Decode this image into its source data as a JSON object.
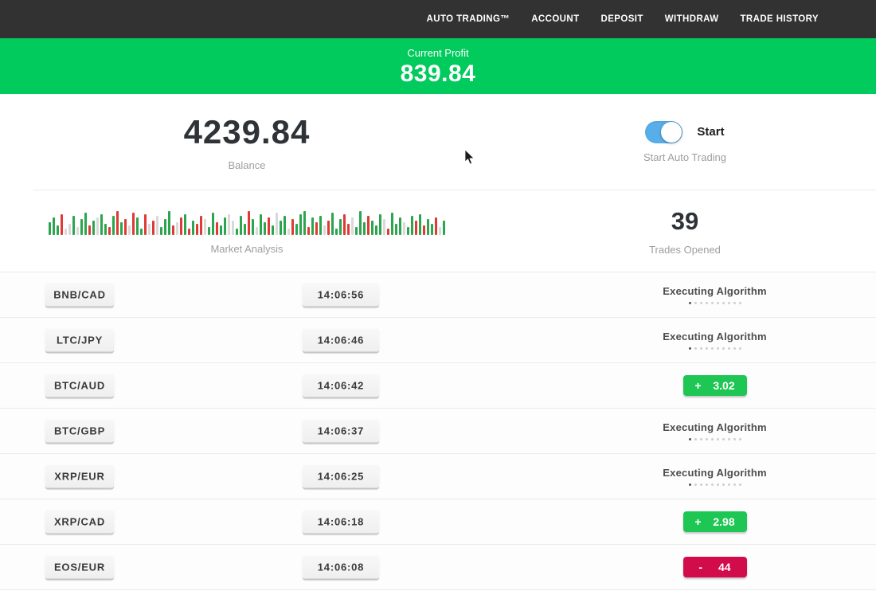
{
  "nav": {
    "items": [
      {
        "label": "AUTO TRADING™"
      },
      {
        "label": "ACCOUNT"
      },
      {
        "label": "DEPOSIT"
      },
      {
        "label": "WITHDRAW"
      },
      {
        "label": "TRADE HISTORY"
      }
    ]
  },
  "profit_banner": {
    "label": "Current Profit",
    "value": "839.84"
  },
  "stats": {
    "balance": {
      "value": "4239.84",
      "label": "Balance"
    },
    "auto_trading": {
      "toggle_on": true,
      "toggle_label": "Start",
      "label": "Start Auto Trading"
    },
    "market_analysis": {
      "label": "Market Analysis"
    },
    "trades_opened": {
      "value": "39",
      "label": "Trades Opened"
    }
  },
  "chart_data": {
    "type": "bar",
    "title": "Market Analysis",
    "note": "decorative green/red/gray volume-style sparkline, bottom-aligned bars",
    "bars": [
      [
        16,
        "g"
      ],
      [
        22,
        "g"
      ],
      [
        12,
        "g"
      ],
      [
        26,
        "r"
      ],
      [
        8,
        "l"
      ],
      [
        14,
        "l"
      ],
      [
        24,
        "g"
      ],
      [
        10,
        "l"
      ],
      [
        20,
        "g"
      ],
      [
        28,
        "g"
      ],
      [
        12,
        "r"
      ],
      [
        18,
        "g"
      ],
      [
        22,
        "l"
      ],
      [
        26,
        "g"
      ],
      [
        14,
        "g"
      ],
      [
        10,
        "r"
      ],
      [
        24,
        "g"
      ],
      [
        30,
        "r"
      ],
      [
        16,
        "g"
      ],
      [
        20,
        "r"
      ],
      [
        12,
        "l"
      ],
      [
        28,
        "r"
      ],
      [
        22,
        "g"
      ],
      [
        8,
        "g"
      ],
      [
        26,
        "r"
      ],
      [
        14,
        "l"
      ],
      [
        18,
        "r"
      ],
      [
        24,
        "l"
      ],
      [
        10,
        "g"
      ],
      [
        20,
        "g"
      ],
      [
        30,
        "g"
      ],
      [
        12,
        "r"
      ],
      [
        16,
        "l"
      ],
      [
        22,
        "r"
      ],
      [
        26,
        "g"
      ],
      [
        8,
        "r"
      ],
      [
        18,
        "g"
      ],
      [
        14,
        "r"
      ],
      [
        24,
        "r"
      ],
      [
        20,
        "l"
      ],
      [
        10,
        "g"
      ],
      [
        28,
        "g"
      ],
      [
        16,
        "r"
      ],
      [
        12,
        "g"
      ],
      [
        22,
        "g"
      ],
      [
        26,
        "l"
      ],
      [
        18,
        "l"
      ],
      [
        8,
        "g"
      ],
      [
        24,
        "g"
      ],
      [
        14,
        "g"
      ],
      [
        30,
        "r"
      ],
      [
        20,
        "g"
      ],
      [
        10,
        "l"
      ],
      [
        26,
        "g"
      ],
      [
        16,
        "g"
      ],
      [
        22,
        "r"
      ],
      [
        12,
        "g"
      ],
      [
        28,
        "l"
      ],
      [
        18,
        "g"
      ],
      [
        24,
        "g"
      ],
      [
        8,
        "l"
      ],
      [
        20,
        "r"
      ],
      [
        14,
        "g"
      ],
      [
        26,
        "g"
      ],
      [
        30,
        "g"
      ],
      [
        10,
        "r"
      ],
      [
        22,
        "g"
      ],
      [
        16,
        "r"
      ],
      [
        24,
        "g"
      ],
      [
        12,
        "l"
      ],
      [
        18,
        "r"
      ],
      [
        28,
        "g"
      ],
      [
        8,
        "g"
      ],
      [
        20,
        "g"
      ],
      [
        26,
        "r"
      ],
      [
        14,
        "r"
      ],
      [
        22,
        "l"
      ],
      [
        10,
        "g"
      ],
      [
        30,
        "g"
      ],
      [
        16,
        "g"
      ],
      [
        24,
        "r"
      ],
      [
        18,
        "g"
      ],
      [
        12,
        "g"
      ],
      [
        26,
        "g"
      ],
      [
        20,
        "l"
      ],
      [
        8,
        "r"
      ],
      [
        28,
        "g"
      ],
      [
        14,
        "g"
      ],
      [
        22,
        "g"
      ],
      [
        16,
        "l"
      ],
      [
        10,
        "g"
      ],
      [
        24,
        "g"
      ],
      [
        18,
        "r"
      ],
      [
        26,
        "g"
      ],
      [
        12,
        "r"
      ],
      [
        20,
        "g"
      ],
      [
        14,
        "g"
      ],
      [
        22,
        "r"
      ],
      [
        10,
        "l"
      ],
      [
        18,
        "g"
      ]
    ]
  },
  "executing_dots": {
    "total": 10,
    "active_index": 0
  },
  "trades": [
    {
      "pair": "BNB/CAD",
      "time": "14:06:56",
      "status": "executing",
      "status_label": "Executing Algorithm"
    },
    {
      "pair": "LTC/JPY",
      "time": "14:06:46",
      "status": "executing",
      "status_label": "Executing Algorithm"
    },
    {
      "pair": "BTC/AUD",
      "time": "14:06:42",
      "status": "profit",
      "sign": "+",
      "value": "3.02"
    },
    {
      "pair": "BTC/GBP",
      "time": "14:06:37",
      "status": "executing",
      "status_label": "Executing Algorithm"
    },
    {
      "pair": "XRP/EUR",
      "time": "14:06:25",
      "status": "executing",
      "status_label": "Executing Algorithm"
    },
    {
      "pair": "XRP/CAD",
      "time": "14:06:18",
      "status": "profit",
      "sign": "+",
      "value": "2.98"
    },
    {
      "pair": "EOS/EUR",
      "time": "14:06:08",
      "status": "loss",
      "sign": "-",
      "value": "44"
    }
  ],
  "colors": {
    "nav_bg": "#323232",
    "banner_green": "#00cb5c",
    "profit_badge_green": "#1ec653",
    "loss_badge_red": "#d20c4b",
    "toggle_blue": "#57aee9",
    "bar_green": "#2da44e",
    "bar_red": "#df3a35"
  }
}
